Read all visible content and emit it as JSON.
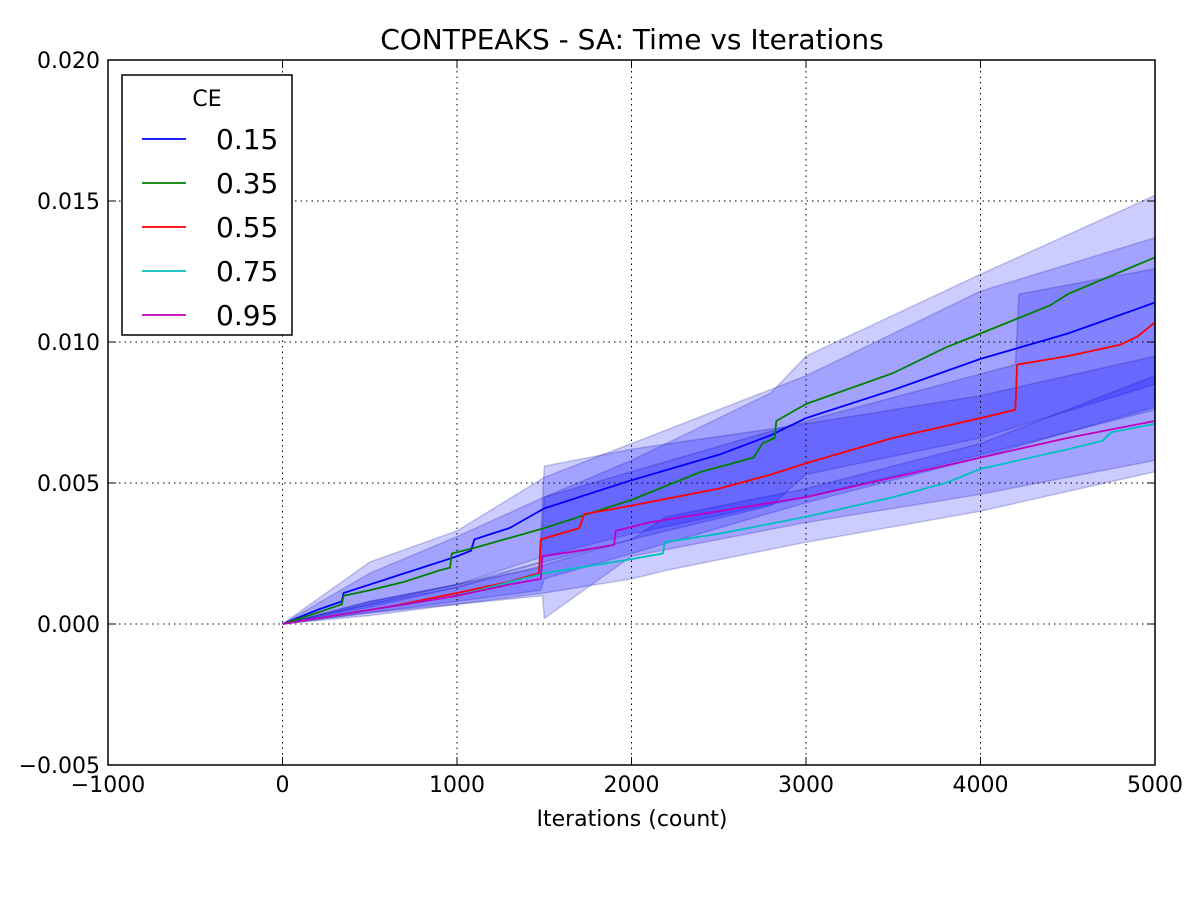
{
  "chart_data": {
    "type": "line",
    "title": "CONTPEAKS - SA: Time vs Iterations",
    "xlabel": "Iterations (count)",
    "ylabel": "",
    "xlim": [
      -1000,
      5000
    ],
    "ylim": [
      -0.005,
      0.02
    ],
    "xticks": [
      -1000,
      0,
      1000,
      2000,
      3000,
      4000,
      5000
    ],
    "xtick_labels": [
      "−1000",
      "0",
      "1000",
      "2000",
      "3000",
      "4000",
      "5000"
    ],
    "yticks": [
      -0.005,
      0,
      0.005,
      0.01,
      0.015,
      0.02
    ],
    "ytick_labels": [
      "−0.005",
      "0.000",
      "0.005",
      "0.010",
      "0.015",
      "0.020"
    ],
    "grid": true,
    "legend": {
      "title": "CE",
      "placement": "top-left"
    },
    "series": [
      {
        "name": "0.15",
        "color": "#0000ff",
        "points": [
          [
            0,
            0
          ],
          [
            200,
            0.0005
          ],
          [
            340,
            0.0008
          ],
          [
            350,
            0.0011
          ],
          [
            400,
            0.0012
          ],
          [
            600,
            0.0016
          ],
          [
            800,
            0.002
          ],
          [
            1000,
            0.0024
          ],
          [
            1080,
            0.0026
          ],
          [
            1100,
            0.003
          ],
          [
            1300,
            0.0034
          ],
          [
            1500,
            0.0041
          ],
          [
            2000,
            0.0051
          ],
          [
            2500,
            0.006
          ],
          [
            2800,
            0.0067
          ],
          [
            3000,
            0.0073
          ],
          [
            3500,
            0.0083
          ],
          [
            4000,
            0.0094
          ],
          [
            4500,
            0.0103
          ],
          [
            5000,
            0.0114
          ]
        ],
        "band_low": [
          [
            0,
            0
          ],
          [
            500,
            0.0007
          ],
          [
            1000,
            0.0014
          ],
          [
            1500,
            0.0024
          ],
          [
            2000,
            0.0032
          ],
          [
            3000,
            0.0045
          ],
          [
            4000,
            0.006
          ],
          [
            5000,
            0.0076
          ]
        ],
        "band_high": [
          [
            0,
            0
          ],
          [
            500,
            0.0022
          ],
          [
            1000,
            0.0033
          ],
          [
            1500,
            0.0052
          ],
          [
            2000,
            0.0064
          ],
          [
            3000,
            0.0088
          ],
          [
            4000,
            0.0118
          ],
          [
            5000,
            0.0137
          ]
        ]
      },
      {
        "name": "0.35",
        "color": "#008000",
        "points": [
          [
            0,
            0
          ],
          [
            200,
            0.0004
          ],
          [
            340,
            0.0007
          ],
          [
            350,
            0.001
          ],
          [
            500,
            0.0012
          ],
          [
            700,
            0.0015
          ],
          [
            900,
            0.0019
          ],
          [
            960,
            0.002
          ],
          [
            970,
            0.0025
          ],
          [
            1100,
            0.0027
          ],
          [
            1500,
            0.0034
          ],
          [
            2000,
            0.0044
          ],
          [
            2400,
            0.0054
          ],
          [
            2700,
            0.0059
          ],
          [
            2750,
            0.0064
          ],
          [
            2820,
            0.0066
          ],
          [
            2830,
            0.0072
          ],
          [
            3000,
            0.0078
          ],
          [
            3500,
            0.0089
          ],
          [
            3800,
            0.0098
          ],
          [
            4000,
            0.0103
          ],
          [
            4400,
            0.0113
          ],
          [
            4500,
            0.0117
          ],
          [
            5000,
            0.013
          ]
        ],
        "band_low": [
          [
            0,
            0
          ],
          [
            500,
            0.0006
          ],
          [
            1000,
            0.0013
          ],
          [
            1500,
            0.0022
          ],
          [
            2000,
            0.003
          ],
          [
            2800,
            0.0042
          ],
          [
            3000,
            0.0053
          ],
          [
            4000,
            0.0066
          ],
          [
            5000,
            0.0085
          ]
        ],
        "band_high": [
          [
            0,
            0
          ],
          [
            500,
            0.0018
          ],
          [
            1000,
            0.0031
          ],
          [
            1500,
            0.0045
          ],
          [
            2000,
            0.0058
          ],
          [
            2800,
            0.0082
          ],
          [
            3000,
            0.0095
          ],
          [
            4000,
            0.0124
          ],
          [
            5000,
            0.0152
          ]
        ]
      },
      {
        "name": "0.55",
        "color": "#ff0000",
        "points": [
          [
            0,
            0
          ],
          [
            300,
            0.0003
          ],
          [
            600,
            0.0006
          ],
          [
            1000,
            0.0011
          ],
          [
            1300,
            0.0015
          ],
          [
            1470,
            0.0018
          ],
          [
            1480,
            0.003
          ],
          [
            1700,
            0.0034
          ],
          [
            1730,
            0.0039
          ],
          [
            2000,
            0.0042
          ],
          [
            2500,
            0.0048
          ],
          [
            2800,
            0.0053
          ],
          [
            3000,
            0.0057
          ],
          [
            3500,
            0.0066
          ],
          [
            4000,
            0.0073
          ],
          [
            4200,
            0.0076
          ],
          [
            4210,
            0.0092
          ],
          [
            4500,
            0.0095
          ],
          [
            4800,
            0.0099
          ],
          [
            4900,
            0.0102
          ],
          [
            5000,
            0.0107
          ]
        ],
        "band_low": [
          [
            0,
            0
          ],
          [
            500,
            0.0004
          ],
          [
            1000,
            0.0008
          ],
          [
            1480,
            0.0012
          ],
          [
            1500,
            0.0016
          ],
          [
            2000,
            0.0025
          ],
          [
            3000,
            0.0043
          ],
          [
            4000,
            0.0059
          ],
          [
            5000,
            0.0077
          ]
        ],
        "band_high": [
          [
            0,
            0
          ],
          [
            500,
            0.0008
          ],
          [
            1000,
            0.0014
          ],
          [
            1480,
            0.0022
          ],
          [
            1500,
            0.0045
          ],
          [
            2000,
            0.0054
          ],
          [
            3000,
            0.0072
          ],
          [
            4200,
            0.0092
          ],
          [
            4220,
            0.0117
          ],
          [
            5000,
            0.0126
          ]
        ]
      },
      {
        "name": "0.75",
        "color": "#00bfbf",
        "points": [
          [
            0,
            0
          ],
          [
            300,
            0.0003
          ],
          [
            700,
            0.0007
          ],
          [
            1000,
            0.001
          ],
          [
            1500,
            0.0018
          ],
          [
            1800,
            0.0021
          ],
          [
            2000,
            0.0023
          ],
          [
            2180,
            0.0025
          ],
          [
            2190,
            0.0029
          ],
          [
            2500,
            0.0032
          ],
          [
            3000,
            0.0038
          ],
          [
            3500,
            0.0045
          ],
          [
            3800,
            0.005
          ],
          [
            4000,
            0.0055
          ],
          [
            4500,
            0.0062
          ],
          [
            4700,
            0.0065
          ],
          [
            4750,
            0.0068
          ],
          [
            5000,
            0.0071
          ]
        ],
        "band_low": [
          [
            0,
            0
          ],
          [
            500,
            0.0004
          ],
          [
            1000,
            0.0007
          ],
          [
            1500,
            0.0011
          ],
          [
            2000,
            0.0016
          ],
          [
            2200,
            0.0019
          ],
          [
            3000,
            0.0029
          ],
          [
            4000,
            0.004
          ],
          [
            5000,
            0.0054
          ]
        ],
        "band_high": [
          [
            0,
            0
          ],
          [
            500,
            0.0007
          ],
          [
            1000,
            0.0013
          ],
          [
            1500,
            0.0021
          ],
          [
            2000,
            0.003
          ],
          [
            2200,
            0.0038
          ],
          [
            3000,
            0.0048
          ],
          [
            4000,
            0.0064
          ],
          [
            5000,
            0.0088
          ]
        ]
      },
      {
        "name": "0.95",
        "color": "#bf00bf",
        "points": [
          [
            0,
            0
          ],
          [
            300,
            0.0003
          ],
          [
            700,
            0.0007
          ],
          [
            1000,
            0.001
          ],
          [
            1300,
            0.0014
          ],
          [
            1480,
            0.0016
          ],
          [
            1490,
            0.0024
          ],
          [
            1700,
            0.0026
          ],
          [
            1900,
            0.0028
          ],
          [
            1910,
            0.0033
          ],
          [
            2100,
            0.0036
          ],
          [
            2500,
            0.004
          ],
          [
            3000,
            0.0045
          ],
          [
            3500,
            0.0052
          ],
          [
            4000,
            0.0059
          ],
          [
            4500,
            0.0066
          ],
          [
            5000,
            0.0072
          ]
        ],
        "band_low": [
          [
            0,
            0
          ],
          [
            500,
            0.0003
          ],
          [
            1000,
            0.0007
          ],
          [
            1490,
            0.001
          ],
          [
            1500,
            0.0002
          ],
          [
            2000,
            0.0024
          ],
          [
            3000,
            0.0036
          ],
          [
            4000,
            0.0046
          ],
          [
            5000,
            0.0058
          ]
        ],
        "band_high": [
          [
            0,
            0
          ],
          [
            500,
            0.0008
          ],
          [
            1000,
            0.0014
          ],
          [
            1470,
            0.002
          ],
          [
            1500,
            0.0056
          ],
          [
            2000,
            0.0062
          ],
          [
            3000,
            0.0071
          ],
          [
            4000,
            0.0081
          ],
          [
            5000,
            0.0095
          ]
        ]
      }
    ]
  }
}
